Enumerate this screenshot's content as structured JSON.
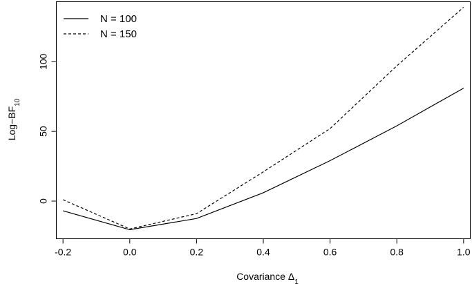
{
  "chart_data": {
    "type": "line",
    "title": "",
    "x": [
      -0.2,
      0.0,
      0.2,
      0.4,
      0.6,
      0.8,
      1.0
    ],
    "series": [
      {
        "name": "N = 100",
        "values": [
          -7,
          -20.5,
          -12.5,
          6,
          29,
          54,
          81
        ],
        "line_style": "solid",
        "color": "#000000"
      },
      {
        "name": "N = 150",
        "values": [
          1,
          -20,
          -9,
          21,
          52,
          97,
          139
        ],
        "line_style": "dashed",
        "color": "#000000"
      }
    ],
    "xlim": [
      -0.22,
      1.02
    ],
    "ylim": [
      -27,
      143
    ],
    "x_ticks": [
      "-0.2",
      "0.0",
      "0.2",
      "0.4",
      "0.6",
      "0.8",
      "1.0"
    ],
    "x_tick_values": [
      -0.2,
      0.0,
      0.2,
      0.4,
      0.6,
      0.8,
      1.0
    ],
    "y_ticks": [
      "0",
      "50",
      "100"
    ],
    "y_tick_values": [
      0,
      50,
      100
    ],
    "xlabel": {
      "main": "Covariance Δ",
      "sub": "1"
    },
    "ylabel": {
      "main": "Log−BF",
      "sub": "10"
    },
    "legend": "top-left",
    "grid": false
  }
}
